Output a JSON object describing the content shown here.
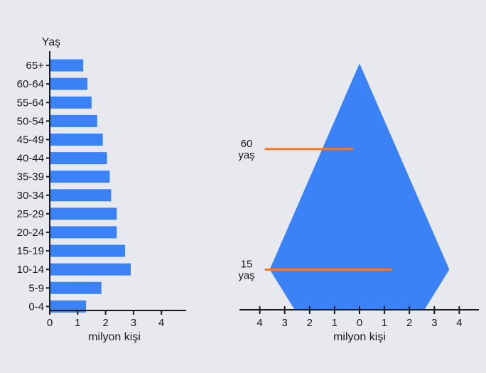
{
  "colors": {
    "background": "#e8e9ee",
    "bar": "#3b82f6",
    "marker": "#f07a2a",
    "axis": "#1a1a1a"
  },
  "chart_data": [
    {
      "type": "bar",
      "orientation": "horizontal",
      "ylabel": "Yaş",
      "xlabel": "milyon kişi",
      "categories": [
        "65+",
        "60-64",
        "55-64",
        "50-54",
        "45-49",
        "40-44",
        "35-39",
        "30-34",
        "25-29",
        "20-24",
        "15-19",
        "10-14",
        "5-9",
        "0-4"
      ],
      "values": [
        1.2,
        1.35,
        1.5,
        1.7,
        1.9,
        2.05,
        2.15,
        2.2,
        2.4,
        2.4,
        2.7,
        2.9,
        1.85,
        1.3
      ],
      "xlim": [
        0,
        4
      ],
      "xticks": [
        "0",
        "1",
        "2",
        "3",
        "4"
      ]
    },
    {
      "type": "area",
      "shape": "population-pyramid",
      "xlabel": "milyon kişi",
      "xticks": [
        "4",
        "3",
        "2",
        "1",
        "0",
        "1",
        "2",
        "3",
        "4"
      ],
      "xlim": [
        -4,
        4
      ],
      "outline": [
        {
          "x": 0,
          "age": 92
        },
        {
          "x": 3.6,
          "age": 15
        },
        {
          "x": 2.6,
          "age": 0
        },
        {
          "x": -2.6,
          "age": 0
        },
        {
          "x": -3.6,
          "age": 15
        }
      ],
      "annotations": [
        {
          "label_line1": "60",
          "label_line2": "yaş",
          "age": 60,
          "x_start": -3.8,
          "x_end": -0.25
        },
        {
          "label_line1": "15",
          "label_line2": "yaş",
          "age": 15,
          "x_start": -3.8,
          "x_end": 1.3
        }
      ]
    }
  ]
}
